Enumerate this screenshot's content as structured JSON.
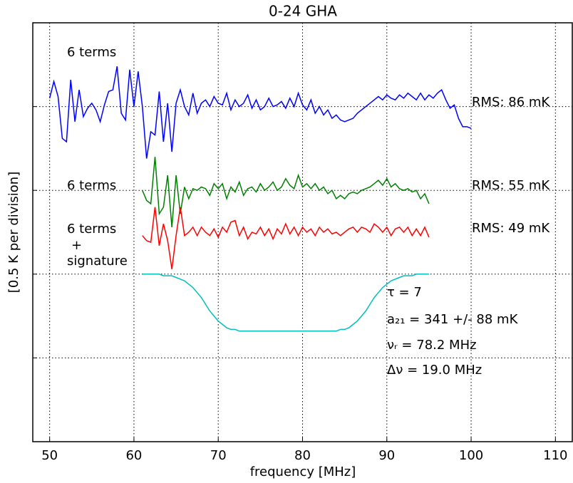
{
  "chart_data": {
    "type": "line",
    "title": "0-24 GHA",
    "x_label": "frequency [MHz]",
    "y_label": "[0.5 K per division]",
    "x": [
      50,
      50.5,
      51,
      51.5,
      52,
      52.5,
      53,
      53.5,
      54,
      54.5,
      55,
      55.5,
      56,
      56.5,
      57,
      57.5,
      58,
      58.5,
      59,
      59.5,
      60,
      60.5,
      61,
      61.5,
      62,
      62.5,
      63,
      63.5,
      64,
      64.5,
      65,
      65.5,
      66,
      66.5,
      67,
      67.5,
      68,
      68.5,
      69,
      69.5,
      70,
      70.5,
      71,
      71.5,
      72,
      72.5,
      73,
      73.5,
      74,
      74.5,
      75,
      75.5,
      76,
      76.5,
      77,
      77.5,
      78,
      78.5,
      79,
      79.5,
      80,
      80.5,
      81,
      81.5,
      82,
      82.5,
      83,
      83.5,
      84,
      84.5,
      85,
      85.5,
      86,
      86.5,
      87,
      87.5,
      88,
      88.5,
      89,
      89.5,
      90,
      90.5,
      91,
      91.5,
      92,
      92.5,
      93,
      93.5,
      94,
      94.5,
      95,
      95.5,
      96,
      96.5,
      97,
      97.5,
      98,
      98.5,
      99,
      99.5,
      100
    ],
    "series": [
      {
        "color": "#0000ff",
        "values": [
          2.05,
          2.15,
          2.06,
          1.81,
          1.79,
          2.16,
          1.91,
          2.1,
          1.94,
          1.99,
          2.02,
          1.98,
          1.91,
          2.01,
          2.09,
          2.1,
          2.24,
          1.96,
          1.92,
          2.22,
          2.0,
          2.21,
          2.0,
          1.69,
          1.85,
          1.83,
          2.09,
          1.79,
          2.02,
          1.73,
          2.02,
          2.1,
          2.0,
          1.95,
          2.08,
          1.96,
          2.02,
          2.04,
          2.0,
          2.06,
          2.02,
          2.01,
          2.08,
          1.98,
          2.04,
          2.0,
          2.02,
          2.07,
          1.99,
          2.04,
          1.98,
          2.0,
          2.05,
          2.0,
          2.01,
          2.03,
          1.99,
          2.05,
          2.0,
          2.08,
          2.01,
          1.98,
          2.04,
          1.96,
          2.0,
          1.95,
          1.98,
          1.93,
          1.95,
          1.92,
          1.91,
          1.92,
          1.93,
          1.96,
          1.98,
          2.0,
          2.02,
          2.04,
          2.06,
          2.04,
          2.07,
          2.05,
          2.04,
          2.07,
          2.05,
          2.08,
          2.06,
          2.04,
          2.08,
          2.04,
          2.07,
          2.05,
          2.08,
          2.1,
          2.04,
          1.99,
          2.01,
          1.93,
          1.88,
          1.88,
          1.87
        ]
      },
      {
        "color": "#008000",
        "values": [
          null,
          null,
          null,
          null,
          null,
          null,
          null,
          null,
          null,
          null,
          null,
          null,
          null,
          null,
          null,
          null,
          null,
          null,
          null,
          null,
          null,
          null,
          1.5,
          1.44,
          1.42,
          1.7,
          1.36,
          1.4,
          1.59,
          1.28,
          1.59,
          1.36,
          1.52,
          1.45,
          1.51,
          1.5,
          1.52,
          1.51,
          1.47,
          1.54,
          1.51,
          1.54,
          1.45,
          1.52,
          1.49,
          1.55,
          1.47,
          1.51,
          1.52,
          1.49,
          1.54,
          1.5,
          1.52,
          1.55,
          1.5,
          1.52,
          1.57,
          1.53,
          1.51,
          1.59,
          1.52,
          1.54,
          1.51,
          1.54,
          1.5,
          1.52,
          1.48,
          1.5,
          1.45,
          1.47,
          1.45,
          1.48,
          1.49,
          1.48,
          1.5,
          1.51,
          1.52,
          1.54,
          1.56,
          1.53,
          1.57,
          1.52,
          1.54,
          1.51,
          1.5,
          1.51,
          1.49,
          1.5,
          1.45,
          1.48,
          1.42,
          null,
          null,
          null,
          null,
          null,
          null,
          null,
          null,
          null,
          null
        ]
      },
      {
        "color": "#ff0000",
        "values": [
          null,
          null,
          null,
          null,
          null,
          null,
          null,
          null,
          null,
          null,
          null,
          null,
          null,
          null,
          null,
          null,
          null,
          null,
          null,
          null,
          null,
          null,
          1.23,
          1.2,
          1.19,
          1.4,
          1.17,
          1.3,
          1.2,
          1.03,
          1.23,
          1.4,
          1.23,
          1.25,
          1.28,
          1.23,
          1.28,
          1.25,
          1.23,
          1.27,
          1.22,
          1.28,
          1.25,
          1.31,
          1.32,
          1.23,
          1.28,
          1.21,
          1.25,
          1.24,
          1.28,
          1.23,
          1.27,
          1.21,
          1.27,
          1.24,
          1.3,
          1.24,
          1.28,
          1.23,
          1.28,
          1.25,
          1.27,
          1.23,
          1.28,
          1.25,
          1.27,
          1.24,
          1.25,
          1.23,
          1.25,
          1.27,
          1.28,
          1.25,
          1.28,
          1.27,
          1.25,
          1.3,
          1.28,
          1.25,
          1.28,
          1.23,
          1.27,
          1.28,
          1.25,
          1.28,
          1.23,
          1.27,
          1.23,
          1.28,
          1.22,
          null,
          null,
          null,
          null,
          null,
          null,
          null,
          null,
          null,
          null
        ]
      },
      {
        "color": "#00bfbf",
        "values": [
          null,
          null,
          null,
          null,
          null,
          null,
          null,
          null,
          null,
          null,
          null,
          null,
          null,
          null,
          null,
          null,
          null,
          null,
          null,
          null,
          null,
          null,
          1.0,
          1.0,
          1.0,
          1.0,
          1.0,
          0.99,
          0.99,
          0.99,
          0.98,
          0.97,
          0.96,
          0.94,
          0.92,
          0.89,
          0.86,
          0.82,
          0.78,
          0.75,
          0.72,
          0.7,
          0.68,
          0.67,
          0.67,
          0.66,
          0.66,
          0.66,
          0.66,
          0.66,
          0.66,
          0.66,
          0.66,
          0.66,
          0.66,
          0.66,
          0.66,
          0.66,
          0.66,
          0.66,
          0.66,
          0.66,
          0.66,
          0.66,
          0.66,
          0.66,
          0.66,
          0.66,
          0.66,
          0.67,
          0.67,
          0.68,
          0.7,
          0.72,
          0.75,
          0.78,
          0.82,
          0.86,
          0.89,
          0.92,
          0.94,
          0.96,
          0.97,
          0.98,
          0.99,
          0.99,
          0.99,
          1.0,
          1.0,
          1.0,
          1.0,
          null,
          null,
          null,
          null,
          null,
          null,
          null,
          null,
          null,
          null
        ]
      }
    ],
    "annotations": [
      "6 terms",
      "RMS: 86 mK",
      "6 terms",
      "RMS: 55 mK",
      "6 terms",
      "+",
      "signature",
      "RMS: 49 mK",
      "τ = 7",
      "a₂₁ = 341 +/- 88 mK",
      "νᵣ = 78.2 MHz",
      "Δν = 19.0 MHz"
    ],
    "xlim": [
      48,
      112
    ],
    "xticks": [
      50,
      60,
      70,
      80,
      90,
      100,
      110
    ],
    "ylim": [
      0,
      2.5
    ],
    "yticks": [
      0.5,
      1.0,
      1.5,
      2.0
    ],
    "grid": true
  }
}
